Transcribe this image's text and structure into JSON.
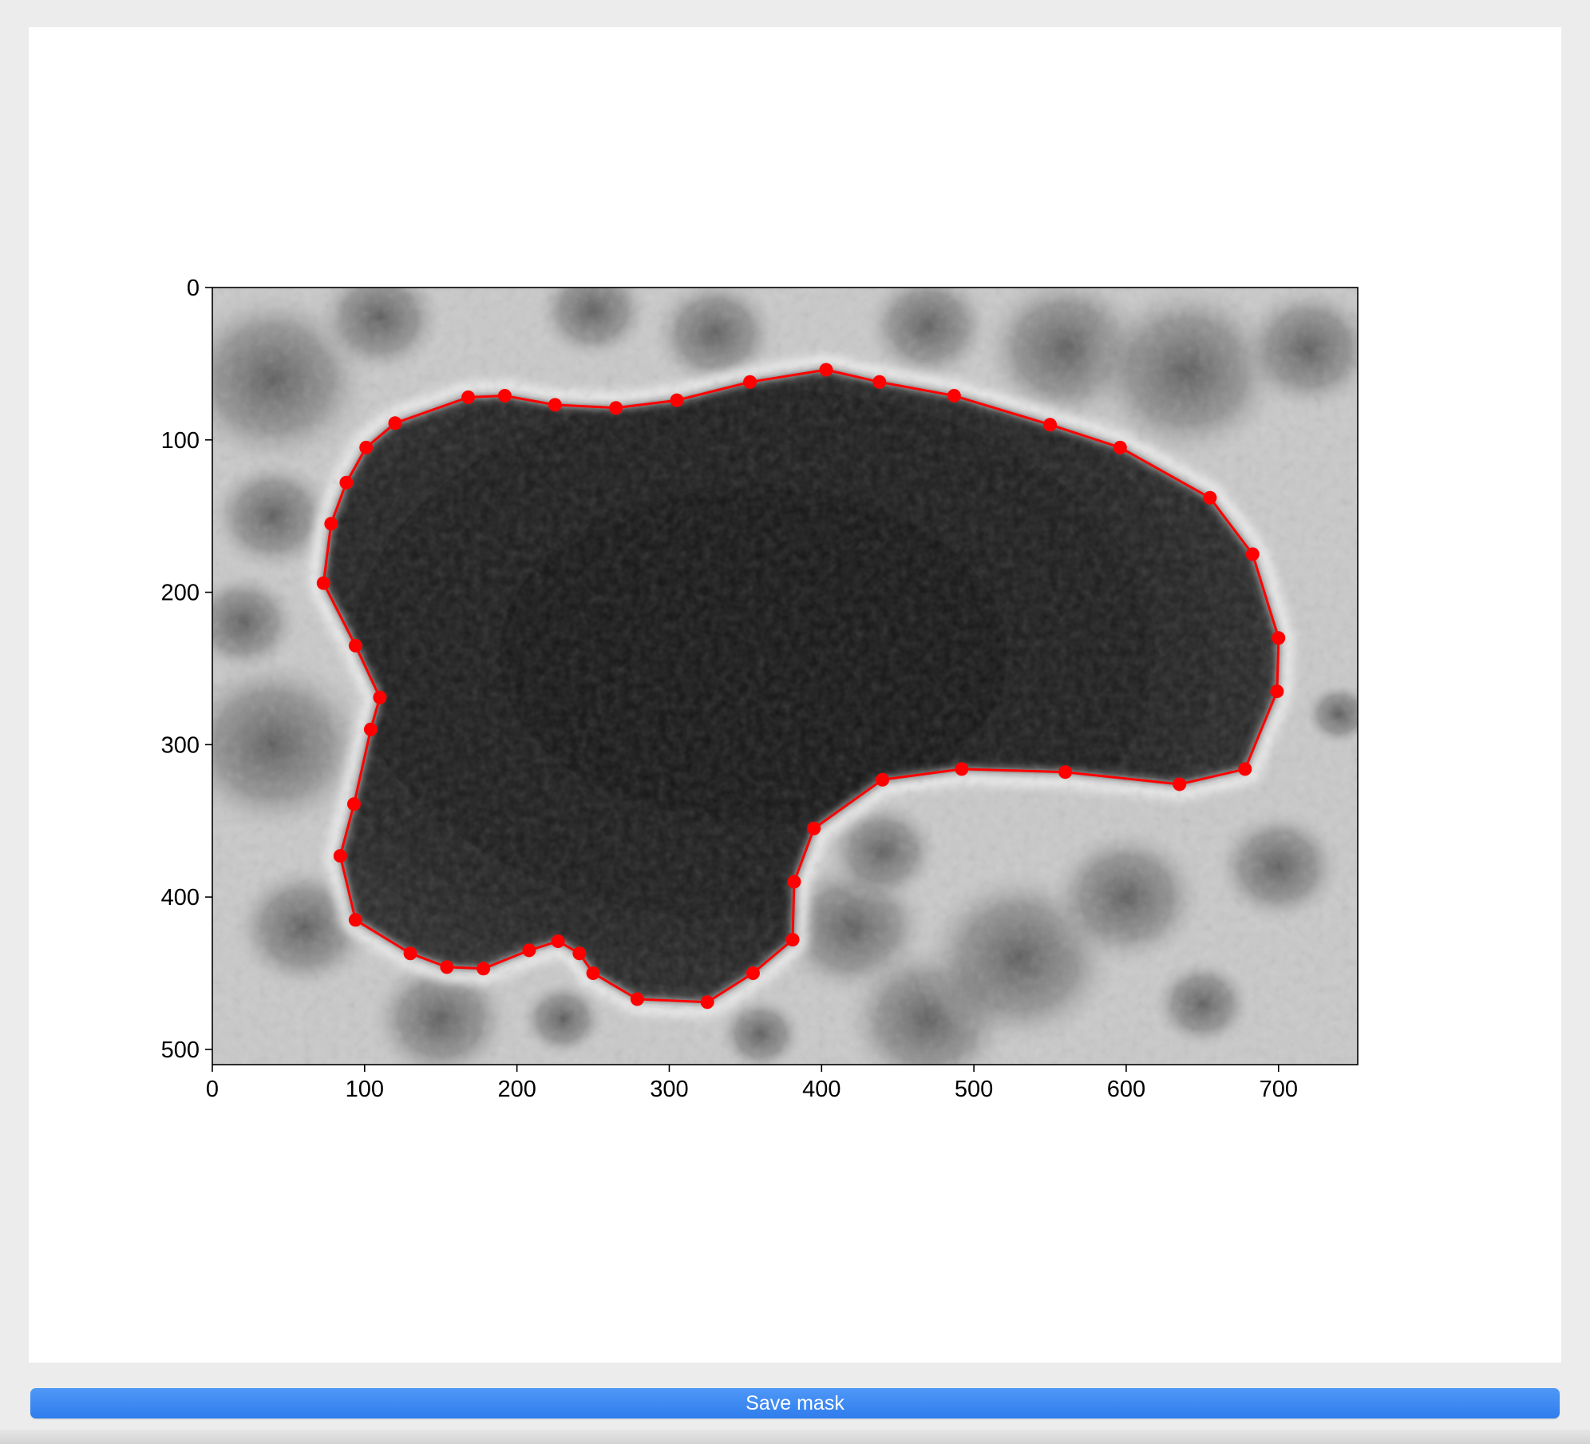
{
  "window": {
    "save_button_label": "Save mask"
  },
  "colors": {
    "outline": "#ff0000",
    "button": "#3a86f0",
    "panel": "#ffffff",
    "background": "#ececec"
  },
  "chart_data": {
    "type": "scatter",
    "description_kind": "image with polygon annotation",
    "title": "",
    "xlabel": "",
    "ylabel": "",
    "xlim": [
      0,
      752
    ],
    "ylim": [
      510,
      0
    ],
    "x_ticks": [
      "0",
      "100",
      "200",
      "300",
      "400",
      "500",
      "600",
      "700"
    ],
    "y_ticks": [
      "0",
      "100",
      "200",
      "300",
      "400",
      "500"
    ],
    "series": [
      {
        "color": "#ff0000",
        "closed": true,
        "points": [
          [
            168,
            72
          ],
          [
            192,
            71
          ],
          [
            225,
            77
          ],
          [
            265,
            79
          ],
          [
            305,
            74
          ],
          [
            353,
            62
          ],
          [
            403,
            54
          ],
          [
            438,
            62
          ],
          [
            487,
            71
          ],
          [
            550,
            90
          ],
          [
            596,
            105
          ],
          [
            655,
            138
          ],
          [
            683,
            175
          ],
          [
            700,
            230
          ],
          [
            699,
            265
          ],
          [
            678,
            316
          ],
          [
            635,
            326
          ],
          [
            560,
            318
          ],
          [
            492,
            316
          ],
          [
            440,
            323
          ],
          [
            395,
            355
          ],
          [
            382,
            390
          ],
          [
            381,
            428
          ],
          [
            355,
            450
          ],
          [
            325,
            469
          ],
          [
            279,
            467
          ],
          [
            250,
            450
          ],
          [
            241,
            437
          ],
          [
            227,
            429
          ],
          [
            208,
            435
          ],
          [
            178,
            447
          ],
          [
            154,
            446
          ],
          [
            130,
            437
          ],
          [
            94,
            415
          ],
          [
            84,
            373
          ],
          [
            93,
            339
          ],
          [
            104,
            290
          ],
          [
            110,
            269
          ],
          [
            94,
            235
          ],
          [
            73,
            194
          ],
          [
            78,
            155
          ],
          [
            88,
            128
          ],
          [
            101,
            105
          ],
          [
            120,
            89
          ]
        ]
      }
    ]
  }
}
